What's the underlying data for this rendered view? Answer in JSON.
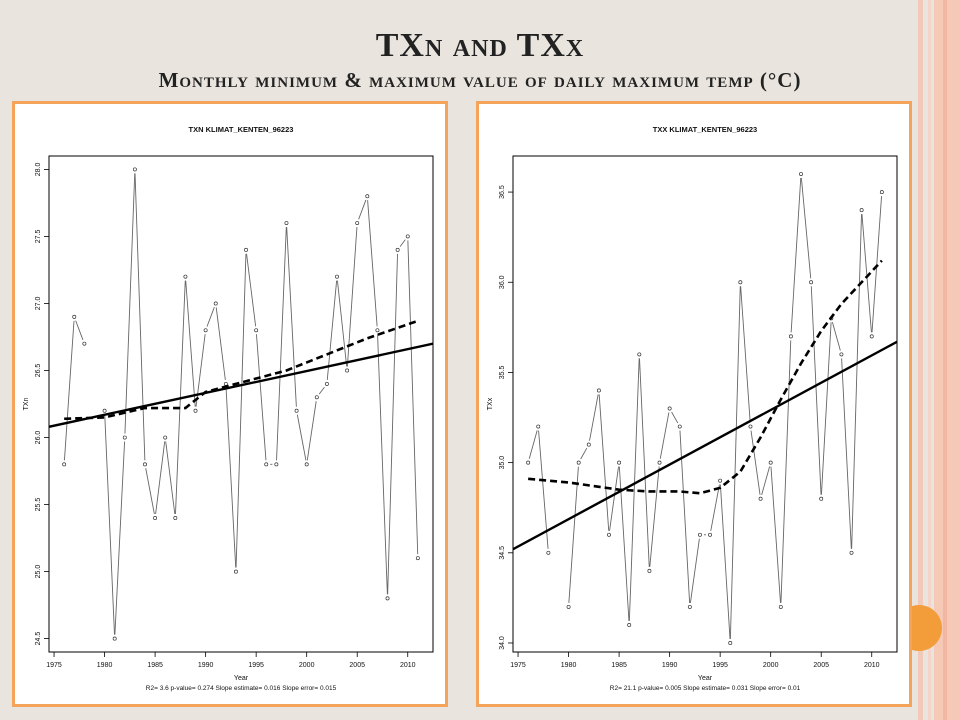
{
  "slide": {
    "title": "TXn and TXx",
    "subtitle": "Monthly minimum & maximum value of daily maximum temp (°C)",
    "accent_color": "#f5a35a",
    "decor_circle_color": "#f39c3a"
  },
  "chart_data": [
    {
      "type": "line",
      "title": "TXN KLIMAT_KENTEN_96223",
      "xlabel": "Year",
      "ylabel": "TXn",
      "xlim": [
        1974.5,
        2012.5
      ],
      "ylim": [
        24.4,
        28.1
      ],
      "xticks": [
        1975,
        1980,
        1985,
        1990,
        1995,
        2000,
        2005,
        2010
      ],
      "yticks": [
        24.5,
        25.0,
        25.5,
        26.0,
        26.5,
        27.0,
        27.5,
        28.0
      ],
      "ytick_labels": [
        "24.5",
        "25.0",
        "25.5",
        "26.0",
        "26.5",
        "27.0",
        "27.5",
        "28.0"
      ],
      "footer": "R2= 3.6  p-value= 0.274  Slope estimate= 0.016  Slope error= 0.015",
      "series": [
        {
          "style": "points-line",
          "x": [
            1976,
            1977,
            1978,
            1979,
            1980,
            1981,
            1982,
            1983,
            1984,
            1985,
            1986,
            1987,
            1988,
            1989,
            1990,
            1991,
            1992,
            1993,
            1994,
            1995,
            1996,
            1997,
            1998,
            1999,
            2000,
            2001,
            2002,
            2003,
            2004,
            2005,
            2006,
            2007,
            2008,
            2009,
            2010,
            2011
          ],
          "y": [
            25.8,
            26.9,
            26.7,
            null,
            26.2,
            24.5,
            26.0,
            28.0,
            25.8,
            25.4,
            26.0,
            25.4,
            27.2,
            26.2,
            26.8,
            27.0,
            26.4,
            25.0,
            27.4,
            26.8,
            25.8,
            25.8,
            27.6,
            26.2,
            25.8,
            26.3,
            26.4,
            27.2,
            26.5,
            27.6,
            27.8,
            26.8,
            24.8,
            27.4,
            27.5,
            25.1
          ]
        },
        {
          "style": "solid",
          "x": [
            1974.5,
            2012.5
          ],
          "y": [
            26.08,
            26.7
          ]
        },
        {
          "style": "dashed",
          "x": [
            1976,
            1980,
            1984,
            1988,
            1990,
            1994,
            1998,
            2002,
            2006,
            2011
          ],
          "y": [
            26.14,
            26.15,
            26.22,
            26.22,
            26.34,
            26.42,
            26.5,
            26.62,
            26.74,
            26.87
          ]
        }
      ]
    },
    {
      "type": "line",
      "title": "TXX KLIMAT_KENTEN_96223",
      "xlabel": "Year",
      "ylabel": "TXx",
      "xlim": [
        1974.5,
        2012.5
      ],
      "ylim": [
        33.95,
        36.7
      ],
      "xticks": [
        1975,
        1980,
        1985,
        1990,
        1995,
        2000,
        2005,
        2010
      ],
      "yticks": [
        34.0,
        34.5,
        35.0,
        35.5,
        36.0,
        36.5
      ],
      "ytick_labels": [
        "34.0",
        "34.5",
        "35.0",
        "35.5",
        "36.0",
        "36.5"
      ],
      "footer": "R2= 21.1  p-value= 0.005  Slope estimate= 0.031  Slope error= 0.01",
      "series": [
        {
          "style": "points-line",
          "x": [
            1976,
            1977,
            1978,
            1979,
            1980,
            1981,
            1982,
            1983,
            1984,
            1985,
            1986,
            1987,
            1988,
            1989,
            1990,
            1991,
            1992,
            1993,
            1994,
            1995,
            1996,
            1997,
            1998,
            1999,
            2000,
            2001,
            2002,
            2003,
            2004,
            2005,
            2006,
            2007,
            2008,
            2009,
            2010,
            2011
          ],
          "y": [
            35.0,
            35.2,
            34.5,
            null,
            34.2,
            35.0,
            35.1,
            35.4,
            34.6,
            35.0,
            34.1,
            35.6,
            34.4,
            35.0,
            35.3,
            35.2,
            34.2,
            34.6,
            34.6,
            34.9,
            34.0,
            36.0,
            35.2,
            34.8,
            35.0,
            34.2,
            35.7,
            36.6,
            36.0,
            34.8,
            35.8,
            35.6,
            34.5,
            36.4,
            35.7,
            36.5
          ]
        },
        {
          "style": "solid",
          "x": [
            1974.5,
            2012.5
          ],
          "y": [
            34.52,
            35.67
          ]
        },
        {
          "style": "dashed",
          "x": [
            1976,
            1980,
            1985,
            1988,
            1991,
            1993,
            1995,
            1997,
            1999,
            2001,
            2003,
            2005,
            2007,
            2009,
            2011
          ],
          "y": [
            34.91,
            34.89,
            34.85,
            34.84,
            34.84,
            34.83,
            34.86,
            34.95,
            35.14,
            35.35,
            35.55,
            35.73,
            35.88,
            36.0,
            36.12
          ]
        }
      ]
    }
  ]
}
